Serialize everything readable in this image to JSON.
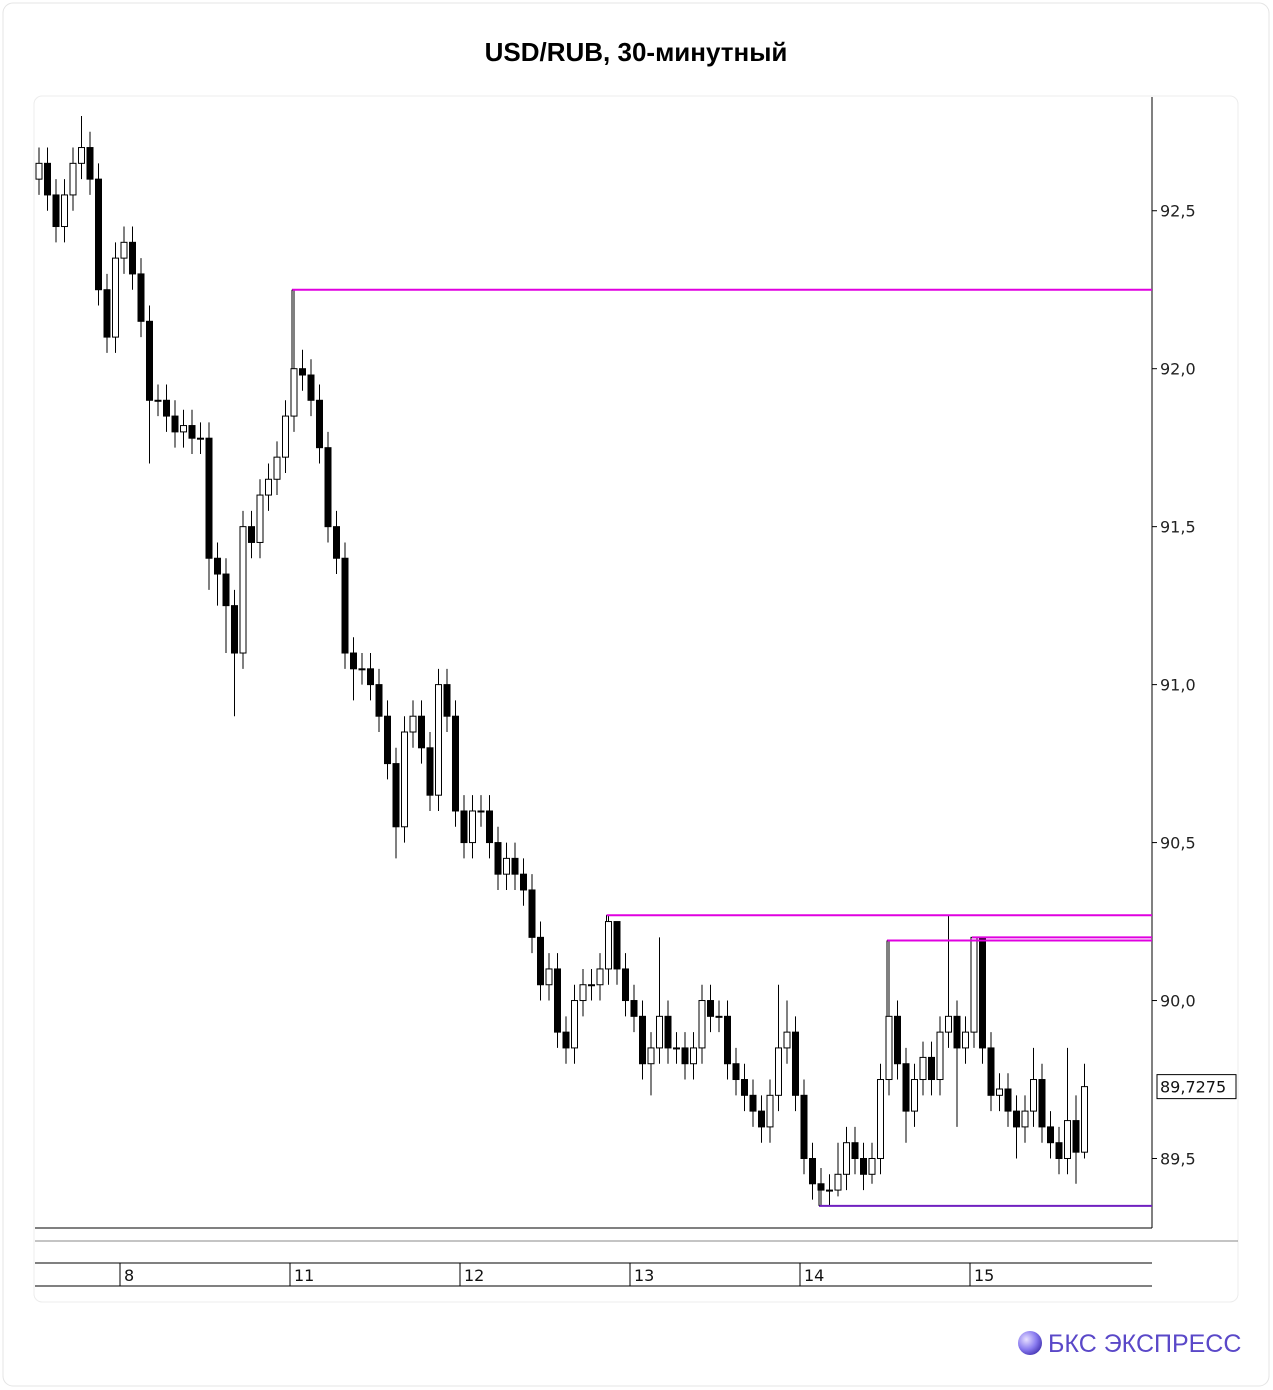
{
  "chart_data": {
    "type": "candlestick",
    "title": "USD/RUB, 30-минутный",
    "categories": [
      null,
      null,
      null,
      null,
      null,
      null,
      null,
      null,
      null,
      null,
      "8",
      null,
      null,
      null,
      null,
      null,
      null,
      null,
      null,
      null,
      null,
      null,
      null,
      null,
      null,
      null,
      null,
      null,
      null,
      null,
      "11",
      null,
      null,
      null,
      null,
      null,
      null,
      null,
      null,
      null,
      null,
      null,
      null,
      null,
      null,
      null,
      null,
      null,
      null,
      null,
      "12",
      null,
      null,
      null,
      null,
      null,
      null,
      null,
      null,
      null,
      null,
      null,
      null,
      null,
      null,
      null,
      null,
      null,
      null,
      null,
      "13",
      null,
      null,
      null,
      null,
      null,
      null,
      null,
      null,
      null,
      null,
      null,
      null,
      null,
      null,
      null,
      null,
      null,
      null,
      null,
      "14",
      null,
      null,
      null,
      null,
      null,
      null,
      null,
      null,
      null,
      null,
      null,
      null,
      null,
      null,
      null,
      null,
      null,
      null,
      null,
      "15",
      null,
      null,
      null,
      null,
      null,
      null,
      null,
      null,
      null,
      null,
      null,
      null,
      null
    ],
    "open": [
      92.6,
      92.65,
      92.55,
      92.45,
      92.55,
      92.65,
      92.7,
      92.6,
      92.25,
      92.1,
      92.35,
      92.4,
      92.3,
      92.15,
      91.9,
      91.9,
      91.85,
      91.8,
      91.82,
      91.78,
      91.78,
      91.4,
      91.35,
      91.25,
      91.1,
      91.5,
      91.45,
      91.6,
      91.65,
      91.72,
      91.85,
      92.0,
      91.98,
      91.9,
      91.75,
      91.5,
      91.4,
      91.1,
      91.05,
      91.05,
      91.0,
      90.9,
      90.75,
      90.55,
      90.85,
      90.9,
      90.8,
      90.65,
      91.0,
      90.9,
      90.6,
      90.5,
      90.6,
      90.6,
      90.5,
      90.4,
      90.45,
      90.4,
      90.35,
      90.2,
      90.05,
      90.1,
      89.9,
      89.85,
      90.0,
      90.05,
      90.05,
      90.1,
      90.25,
      90.1,
      90.0,
      89.95,
      89.8,
      89.85,
      89.95,
      89.85,
      89.85,
      89.8,
      89.85,
      90.0,
      89.95,
      89.95,
      89.8,
      89.75,
      89.7,
      89.65,
      89.6,
      89.7,
      89.85,
      89.9,
      89.7,
      89.5,
      89.42,
      89.4,
      89.4,
      89.45,
      89.55,
      89.5,
      89.45,
      89.5,
      89.75,
      89.95,
      89.8,
      89.65,
      89.75,
      89.82,
      89.75,
      89.9,
      89.95,
      89.85,
      89.9,
      90.2,
      89.85,
      89.7,
      89.72,
      89.65,
      89.6,
      89.65,
      89.75,
      89.6,
      89.55,
      89.5,
      89.62,
      89.52
    ],
    "high": [
      92.7,
      92.7,
      92.6,
      92.6,
      92.7,
      92.8,
      92.75,
      92.65,
      92.3,
      92.4,
      92.45,
      92.45,
      92.35,
      92.2,
      91.95,
      91.95,
      91.9,
      91.87,
      91.87,
      91.83,
      91.83,
      91.45,
      91.4,
      91.3,
      91.55,
      91.55,
      91.65,
      91.7,
      91.77,
      91.9,
      92.25,
      92.06,
      92.03,
      91.95,
      91.8,
      91.55,
      91.45,
      91.15,
      91.1,
      91.1,
      91.05,
      90.95,
      90.8,
      90.9,
      90.95,
      90.95,
      90.85,
      91.05,
      91.05,
      90.95,
      90.65,
      90.65,
      90.65,
      90.65,
      90.55,
      90.5,
      90.5,
      90.45,
      90.4,
      90.25,
      90.15,
      90.15,
      89.95,
      90.05,
      90.1,
      90.1,
      90.15,
      90.27,
      90.25,
      90.15,
      90.05,
      90.0,
      89.9,
      90.2,
      90.0,
      89.9,
      89.9,
      89.9,
      90.05,
      90.05,
      90.0,
      90.0,
      89.85,
      89.8,
      89.75,
      89.7,
      89.75,
      90.05,
      90.0,
      89.95,
      89.75,
      89.55,
      89.47,
      89.45,
      89.55,
      89.6,
      89.6,
      89.55,
      89.55,
      89.8,
      90.19,
      90.0,
      89.85,
      89.8,
      89.87,
      89.87,
      89.95,
      90.27,
      90.0,
      89.95,
      90.2,
      90.2,
      89.9,
      89.77,
      89.77,
      89.7,
      89.7,
      89.85,
      89.8,
      89.65,
      89.6,
      89.85,
      89.7,
      89.8
    ],
    "low": [
      92.55,
      92.5,
      92.4,
      92.4,
      92.5,
      92.6,
      92.55,
      92.2,
      92.05,
      92.05,
      92.3,
      92.25,
      92.1,
      91.7,
      91.85,
      91.8,
      91.75,
      91.75,
      91.73,
      91.73,
      91.3,
      91.25,
      91.1,
      90.9,
      91.05,
      91.4,
      91.4,
      91.55,
      91.6,
      91.67,
      91.8,
      91.93,
      91.85,
      91.7,
      91.45,
      91.35,
      91.05,
      90.95,
      91.0,
      90.95,
      90.85,
      90.7,
      90.45,
      90.5,
      90.8,
      90.75,
      90.6,
      90.6,
      90.85,
      90.55,
      90.45,
      90.45,
      90.55,
      90.45,
      90.35,
      90.35,
      90.35,
      90.3,
      90.15,
      90.0,
      90.0,
      89.85,
      89.8,
      89.8,
      89.95,
      90.0,
      90.0,
      90.05,
      90.05,
      89.95,
      89.9,
      89.75,
      89.7,
      89.8,
      89.8,
      89.8,
      89.75,
      89.75,
      89.8,
      89.9,
      89.9,
      89.75,
      89.7,
      89.65,
      89.6,
      89.55,
      89.55,
      89.65,
      89.8,
      89.65,
      89.45,
      89.37,
      89.35,
      89.35,
      89.38,
      89.4,
      89.45,
      89.4,
      89.42,
      89.45,
      89.7,
      89.75,
      89.55,
      89.6,
      89.7,
      89.7,
      89.7,
      89.85,
      89.6,
      89.8,
      89.85,
      89.8,
      89.65,
      89.65,
      89.6,
      89.5,
      89.55,
      89.6,
      89.55,
      89.5,
      89.45,
      89.45,
      89.42,
      89.5
    ],
    "close": [
      92.65,
      92.55,
      92.45,
      92.55,
      92.65,
      92.7,
      92.6,
      92.25,
      92.1,
      92.35,
      92.4,
      92.3,
      92.15,
      91.9,
      91.9,
      91.85,
      91.8,
      91.82,
      91.78,
      91.78,
      91.4,
      91.35,
      91.25,
      91.1,
      91.5,
      91.45,
      91.6,
      91.65,
      91.72,
      91.85,
      92.0,
      91.98,
      91.9,
      91.75,
      91.5,
      91.4,
      91.1,
      91.05,
      91.05,
      91.0,
      90.9,
      90.75,
      90.55,
      90.85,
      90.9,
      90.8,
      90.65,
      91.0,
      90.9,
      90.6,
      90.5,
      90.6,
      90.6,
      90.5,
      90.4,
      90.45,
      90.4,
      90.35,
      90.2,
      90.05,
      90.1,
      89.9,
      89.85,
      90.0,
      90.05,
      90.05,
      90.1,
      90.25,
      90.1,
      90.0,
      89.95,
      89.8,
      89.85,
      89.95,
      89.85,
      89.85,
      89.8,
      89.85,
      90.0,
      89.95,
      89.95,
      89.8,
      89.75,
      89.7,
      89.65,
      89.6,
      89.7,
      89.85,
      89.9,
      89.7,
      89.5,
      89.42,
      89.4,
      89.4,
      89.45,
      89.55,
      89.5,
      89.45,
      89.5,
      89.75,
      89.95,
      89.8,
      89.65,
      89.75,
      89.82,
      89.75,
      89.9,
      89.95,
      89.85,
      89.9,
      90.2,
      89.85,
      89.7,
      89.72,
      89.65,
      89.6,
      89.65,
      89.75,
      89.6,
      89.55,
      89.5,
      89.62,
      89.52,
      89.7275
    ],
    "up_color": "#ffffff",
    "down_color": "#000000",
    "ylim": [
      89.28,
      92.86
    ],
    "yticks": [
      {
        "value": 89.5,
        "label": "89,5"
      },
      {
        "value": 90.0,
        "label": "90,0"
      },
      {
        "value": 90.5,
        "label": "90,5"
      },
      {
        "value": 91.0,
        "label": "91,0"
      },
      {
        "value": 91.5,
        "label": "91,5"
      },
      {
        "value": 92.0,
        "label": "92,0"
      },
      {
        "value": 92.5,
        "label": "92,5"
      }
    ],
    "last_price": {
      "value": 89.7275,
      "label": "89,7275"
    },
    "levels": [
      {
        "value": 92.25,
        "from": 30,
        "color": "#e000e0"
      },
      {
        "value": 90.27,
        "from": 67,
        "color": "#e000e0"
      },
      {
        "value": 90.19,
        "from": 100,
        "color": "#e000e0"
      },
      {
        "value": 90.2,
        "from": 110,
        "color": "#e000e0"
      },
      {
        "value": 89.35,
        "from": 92,
        "color": "#7020c0"
      }
    ]
  },
  "brand": "БКС ЭКСПРЕСС"
}
